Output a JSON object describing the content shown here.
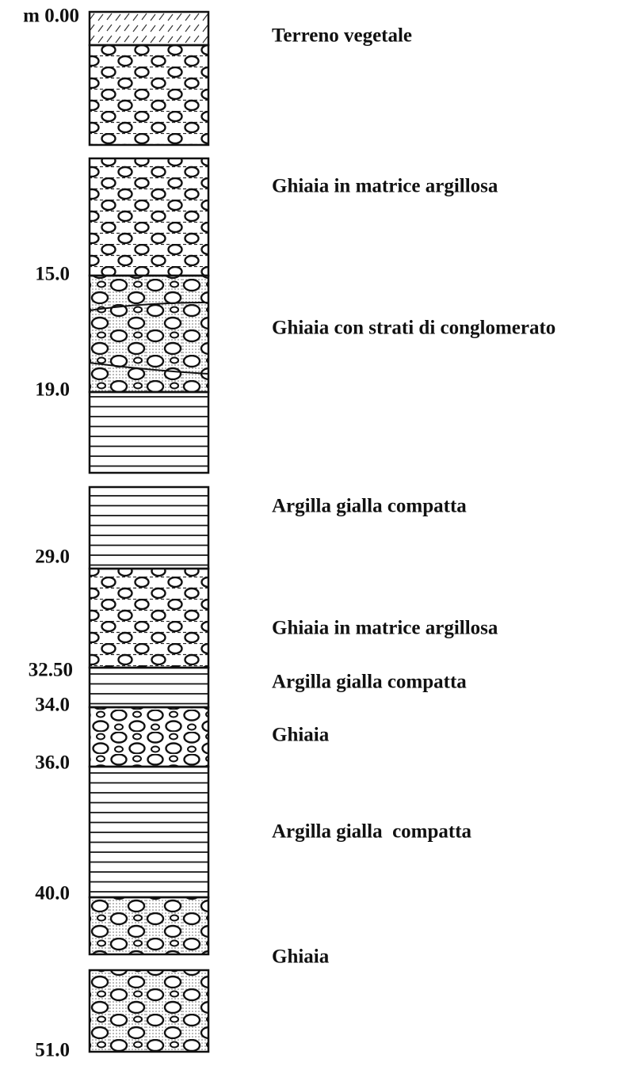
{
  "depths": [
    "m 0.00",
    "15.0",
    "19.0",
    "29.0",
    "32.50",
    "34.0",
    "36.0",
    "40.0",
    "51.0"
  ],
  "layers": [
    "Terreno vegetale",
    "Ghiaia in matrice argillosa",
    "Ghiaia con strati di conglomerato",
    "Argilla gialla compatta",
    "Ghiaia in matrice argillosa",
    "Argilla gialla compatta",
    "Ghiaia",
    "Argilla gialla  compatta",
    "Ghiaia"
  ]
}
